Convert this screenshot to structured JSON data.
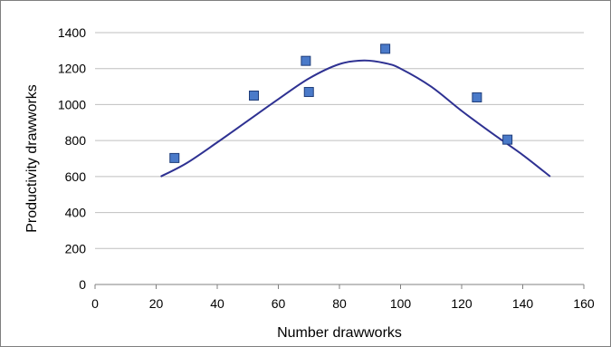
{
  "chart_data": {
    "type": "scatter",
    "title": "",
    "xlabel": "Number drawworks",
    "ylabel": "Productivity drawworks",
    "xlim": [
      0,
      160
    ],
    "ylim": [
      0,
      1400
    ],
    "x_ticks": [
      "0",
      "20",
      "40",
      "60",
      "80",
      "100",
      "120",
      "140",
      "160"
    ],
    "y_ticks": [
      "0",
      "200",
      "400",
      "600",
      "800",
      "1000",
      "1200",
      "1400"
    ],
    "grid": "horizontal",
    "legend": "none",
    "series": [
      {
        "type": "scatter",
        "x": [
          26,
          52,
          69,
          70,
          95,
          125,
          135
        ],
        "y": [
          703,
          1050,
          1243,
          1070,
          1310,
          1040,
          805
        ]
      },
      {
        "type": "line",
        "x": [
          21.5,
          30,
          40,
          50,
          60,
          70,
          80,
          88,
          95,
          100,
          110,
          120,
          130,
          140,
          149
        ],
        "y": [
          600,
          675,
          790,
          910,
          1030,
          1145,
          1225,
          1245,
          1230,
          1200,
          1100,
          965,
          840,
          720,
          600
        ]
      }
    ],
    "colors": {
      "marker_fill": "#4a7ac9",
      "marker_stroke": "#1f3d7a",
      "curve": "#2e3192",
      "grid": "#bfbfbf",
      "axis": "#808080"
    }
  }
}
